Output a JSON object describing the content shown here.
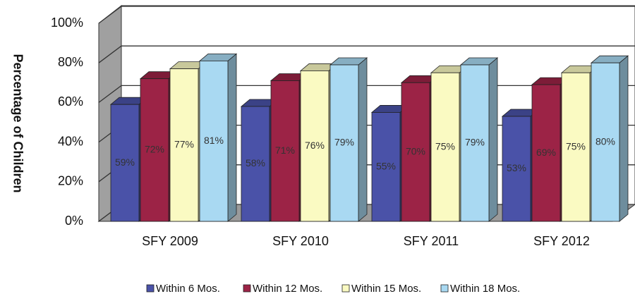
{
  "chart_data": {
    "type": "bar3d",
    "y_axis_label": "Percentage of Children",
    "categories": [
      "SFY 2009",
      "SFY 2010",
      "SFY 2011",
      "SFY 2012"
    ],
    "series": [
      {
        "name": "Within 6 Mos.",
        "color": "#4a52a8",
        "values": [
          59,
          58,
          55,
          53
        ],
        "value_labels": [
          "59%",
          "58%",
          "55%",
          "53%"
        ]
      },
      {
        "name": "Within 12 Mos.",
        "color": "#9c2346",
        "values": [
          72,
          71,
          70,
          69
        ],
        "value_labels": [
          "72%",
          "71%",
          "70%",
          "69%"
        ]
      },
      {
        "name": "Within 15 Mos.",
        "color": "#fafac2",
        "values": [
          77,
          76,
          75,
          75
        ],
        "value_labels": [
          "77%",
          "76%",
          "75%",
          "75%"
        ]
      },
      {
        "name": "Within 18 Mos.",
        "color": "#a9d9f2",
        "values": [
          81,
          79,
          79,
          80
        ],
        "value_labels": [
          "81%",
          "79%",
          "79%",
          "80%"
        ]
      }
    ],
    "ylim": [
      0,
      100
    ],
    "yticks": [
      {
        "value": 0,
        "label": "0%"
      },
      {
        "value": 20,
        "label": "20%"
      },
      {
        "value": 40,
        "label": "40%"
      },
      {
        "value": 60,
        "label": "60%"
      },
      {
        "value": 80,
        "label": "80%"
      },
      {
        "value": 100,
        "label": "100%"
      }
    ],
    "grid": true,
    "legend": "bottom"
  }
}
